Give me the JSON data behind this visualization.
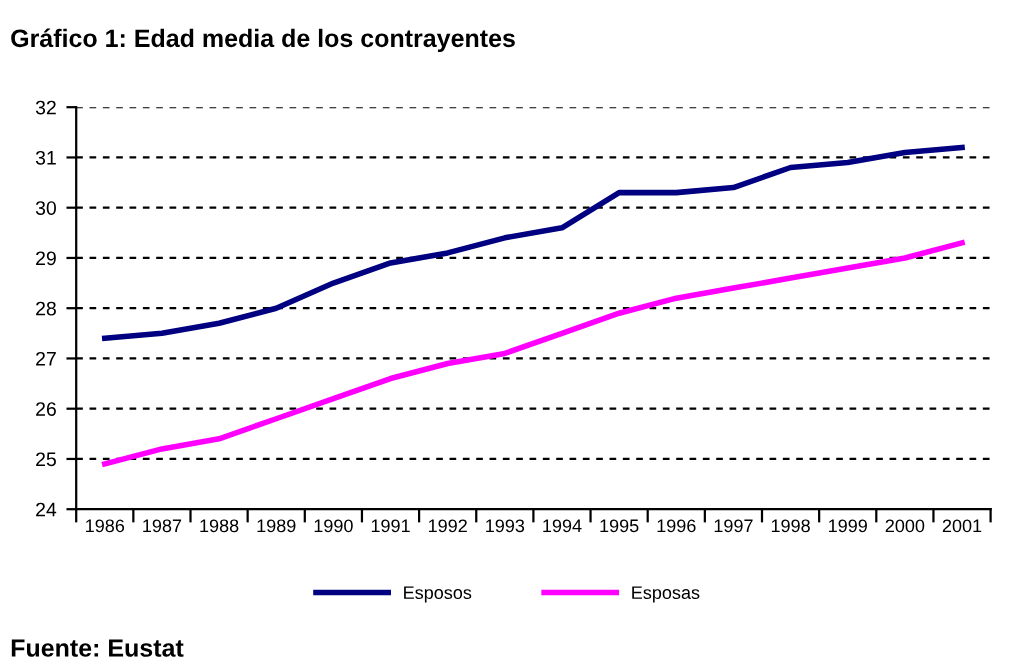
{
  "chart_data": {
    "type": "line",
    "title": "Gráfico 1: Edad media de los contrayentes",
    "categories": [
      "1986",
      "1987",
      "1988",
      "1989",
      "1990",
      "1991",
      "1992",
      "1993",
      "1994",
      "1995",
      "1996",
      "1997",
      "1998",
      "1999",
      "2000",
      "2001"
    ],
    "series": [
      {
        "name": "Esposos",
        "color": "#000080",
        "values": [
          27.4,
          27.5,
          27.7,
          28.0,
          28.5,
          28.9,
          29.1,
          29.4,
          29.6,
          30.3,
          30.3,
          30.4,
          30.8,
          30.9,
          31.1,
          31.2
        ]
      },
      {
        "name": "Esposas",
        "color": "#ff00ff",
        "values": [
          24.9,
          25.2,
          25.4,
          25.8,
          26.2,
          26.6,
          26.9,
          27.1,
          27.5,
          27.9,
          28.2,
          28.4,
          28.6,
          28.8,
          29.0,
          29.3
        ]
      }
    ],
    "ylim": [
      24,
      32
    ],
    "yticks": [
      24,
      25,
      26,
      27,
      28,
      29,
      30,
      31,
      32
    ],
    "grid": "y",
    "legend": "bottom",
    "marker": "none",
    "line_style": "solid",
    "annotations": [
      "Fuente: Eustat"
    ]
  }
}
